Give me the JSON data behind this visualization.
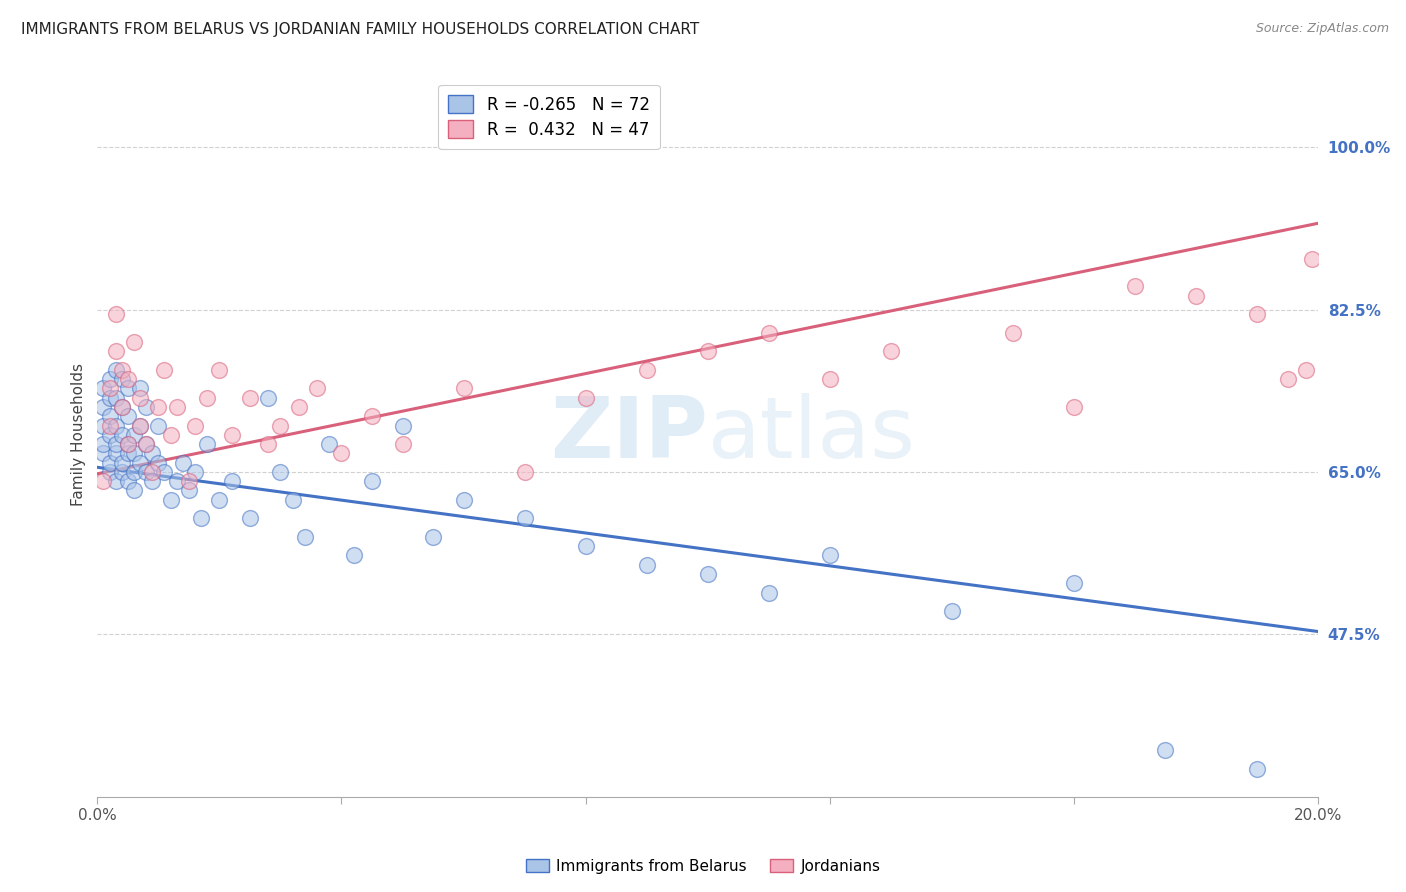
{
  "title": "IMMIGRANTS FROM BELARUS VS JORDANIAN FAMILY HOUSEHOLDS CORRELATION CHART",
  "source": "Source: ZipAtlas.com",
  "ylabel": "Family Households",
  "legend_label1": "Immigrants from Belarus",
  "legend_label2": "Jordanians",
  "R1": -0.265,
  "N1": 72,
  "R2": 0.432,
  "N2": 47,
  "xlim": [
    0.0,
    0.2
  ],
  "ylim": [
    0.3,
    1.08
  ],
  "yticks": [
    0.475,
    0.65,
    0.825,
    1.0
  ],
  "ytick_labels": [
    "47.5%",
    "65.0%",
    "82.5%",
    "100.0%"
  ],
  "xticks": [
    0.0,
    0.04,
    0.08,
    0.12,
    0.16,
    0.2
  ],
  "xtick_labels": [
    "0.0%",
    "",
    "",
    "",
    "",
    "20.0%"
  ],
  "color1": "#aac4e8",
  "color2": "#f4afc0",
  "line_color1": "#4472c4",
  "line_color2": "#d9607a",
  "background_color": "#ffffff",
  "watermark_zip": "ZIP",
  "watermark_atlas": "atlas",
  "title_fontsize": 11,
  "axis_label_fontsize": 11,
  "tick_fontsize": 11,
  "legend_fontsize": 12,
  "trendline1_x": [
    0.0,
    0.2
  ],
  "trendline1_y": [
    0.655,
    0.478
  ],
  "trendline2_x": [
    0.0,
    0.2
  ],
  "trendline2_y": [
    0.648,
    0.918
  ],
  "scatter1_x": [
    0.001,
    0.001,
    0.001,
    0.001,
    0.001,
    0.002,
    0.002,
    0.002,
    0.002,
    0.002,
    0.002,
    0.003,
    0.003,
    0.003,
    0.003,
    0.003,
    0.003,
    0.004,
    0.004,
    0.004,
    0.004,
    0.004,
    0.005,
    0.005,
    0.005,
    0.005,
    0.005,
    0.006,
    0.006,
    0.006,
    0.006,
    0.007,
    0.007,
    0.007,
    0.008,
    0.008,
    0.008,
    0.009,
    0.009,
    0.01,
    0.01,
    0.011,
    0.012,
    0.013,
    0.014,
    0.015,
    0.016,
    0.017,
    0.018,
    0.02,
    0.022,
    0.025,
    0.028,
    0.03,
    0.032,
    0.034,
    0.038,
    0.042,
    0.045,
    0.05,
    0.055,
    0.06,
    0.07,
    0.08,
    0.09,
    0.1,
    0.11,
    0.12,
    0.14,
    0.16,
    0.175,
    0.19
  ],
  "scatter1_y": [
    0.67,
    0.7,
    0.72,
    0.74,
    0.68,
    0.65,
    0.69,
    0.71,
    0.73,
    0.66,
    0.75,
    0.64,
    0.67,
    0.7,
    0.73,
    0.76,
    0.68,
    0.65,
    0.69,
    0.72,
    0.66,
    0.75,
    0.64,
    0.67,
    0.71,
    0.74,
    0.68,
    0.65,
    0.69,
    0.63,
    0.67,
    0.66,
    0.7,
    0.74,
    0.65,
    0.68,
    0.72,
    0.64,
    0.67,
    0.66,
    0.7,
    0.65,
    0.62,
    0.64,
    0.66,
    0.63,
    0.65,
    0.6,
    0.68,
    0.62,
    0.64,
    0.6,
    0.73,
    0.65,
    0.62,
    0.58,
    0.68,
    0.56,
    0.64,
    0.7,
    0.58,
    0.62,
    0.6,
    0.57,
    0.55,
    0.54,
    0.52,
    0.56,
    0.5,
    0.53,
    0.35,
    0.33
  ],
  "scatter2_x": [
    0.001,
    0.002,
    0.002,
    0.003,
    0.003,
    0.004,
    0.004,
    0.005,
    0.005,
    0.006,
    0.007,
    0.007,
    0.008,
    0.009,
    0.01,
    0.011,
    0.012,
    0.013,
    0.015,
    0.016,
    0.018,
    0.02,
    0.022,
    0.025,
    0.028,
    0.03,
    0.033,
    0.036,
    0.04,
    0.045,
    0.05,
    0.06,
    0.07,
    0.08,
    0.09,
    0.1,
    0.11,
    0.12,
    0.13,
    0.15,
    0.16,
    0.17,
    0.18,
    0.19,
    0.195,
    0.198,
    0.199
  ],
  "scatter2_y": [
    0.64,
    0.7,
    0.74,
    0.78,
    0.82,
    0.72,
    0.76,
    0.68,
    0.75,
    0.79,
    0.7,
    0.73,
    0.68,
    0.65,
    0.72,
    0.76,
    0.69,
    0.72,
    0.64,
    0.7,
    0.73,
    0.76,
    0.69,
    0.73,
    0.68,
    0.7,
    0.72,
    0.74,
    0.67,
    0.71,
    0.68,
    0.74,
    0.65,
    0.73,
    0.76,
    0.78,
    0.8,
    0.75,
    0.78,
    0.8,
    0.72,
    0.85,
    0.84,
    0.82,
    0.75,
    0.76,
    0.88
  ]
}
